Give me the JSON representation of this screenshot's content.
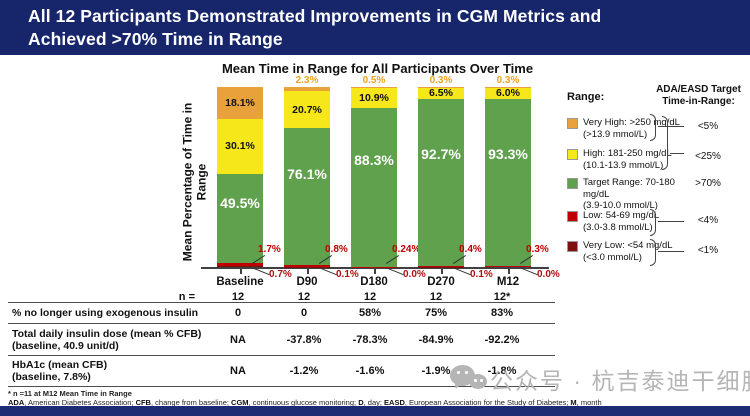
{
  "slide": {
    "title_line1": "All 12 Participants Demonstrated Improvements in CGM Metrics and",
    "title_line2": "Achieved >70% Time in Range"
  },
  "chart_data": {
    "type": "bar",
    "stacked": true,
    "title": "Mean Time in Range for All Participants Over Time",
    "ylabel": "Mean Percentage of Time in Range",
    "ylim": [
      0,
      100
    ],
    "grid": false,
    "legend_position": "right",
    "categories": [
      "Baseline",
      "D90",
      "D180",
      "D270",
      "M12"
    ],
    "series": [
      {
        "name": "Very High: >250 mg/dL (>13.9 mmol/L)",
        "color": "#E9A13C",
        "values": [
          18.1,
          2.3,
          0.5,
          0.3,
          0.3
        ],
        "labels": [
          "18.1%",
          "2.3%",
          "0.5%",
          "0.3%",
          "0.3%"
        ]
      },
      {
        "name": "High: 181-250 mg/dL (10.1-13.9 mmol/L)",
        "color": "#F6E71B",
        "values": [
          30.1,
          20.7,
          10.9,
          6.5,
          6.0
        ],
        "labels": [
          "30.1%",
          "20.7%",
          "10.9%",
          "6.5%",
          "6.0%"
        ]
      },
      {
        "name": "Target Range: 70-180 mg/dL (3.9-10.0 mmol/L)",
        "color": "#5FA14C",
        "values": [
          49.5,
          76.1,
          88.3,
          92.7,
          93.3
        ],
        "labels": [
          "49.5%",
          "76.1%",
          "88.3%",
          "92.7%",
          "93.3%"
        ]
      },
      {
        "name": "Low: 54-69 mg/dL (3.0-3.8 mmol/L)",
        "color": "#C00000",
        "values": [
          1.7,
          0.8,
          0.24,
          0.4,
          0.3
        ],
        "labels": [
          "1.7%",
          "0.8%",
          "0.24%",
          "0.4%",
          "0.3%"
        ]
      },
      {
        "name": "Very Low: <54 mg/dL (<3.0 mmol/L)",
        "color": "#7E1010",
        "values": [
          0.7,
          0.1,
          0.0,
          0.1,
          0.0
        ],
        "labels": [
          "0.7%",
          "0.1%",
          "0.0%",
          "0.1%",
          "0.0%"
        ]
      }
    ]
  },
  "legend": {
    "header": "Range:",
    "target_header_line1": "ADA/EASD Target",
    "target_header_line2": "Time-in-Range:",
    "items": [
      {
        "line1": "Very High: >250 mg/dL",
        "line2": "(>13.9 mmol/L)",
        "color": "#E9A13C",
        "target": "<5%"
      },
      {
        "line1": "High: 181-250 mg/dL",
        "line2": "(10.1-13.9 mmol/L)",
        "color": "#F6E71B",
        "target": "<25%"
      },
      {
        "line1": "Target Range: 70-180 mg/dL",
        "line2": "(3.9-10.0 mmol/L)",
        "color": "#5FA14C",
        "target": ">70%"
      },
      {
        "line1": "Low: 54-69 mg/dL",
        "line2": "(3.0-3.8 mmol/L)",
        "color": "#C00000",
        "target": "<4%"
      },
      {
        "line1": "Very Low: <54 mg/dL",
        "line2": "(<3.0 mmol/L)",
        "color": "#7E1010",
        "target": "<1%"
      }
    ]
  },
  "table": {
    "n_label": "n =",
    "n_values": [
      "12",
      "12",
      "12",
      "12",
      "12*"
    ],
    "rows": [
      {
        "label1": "% no longer using exogenous insulin",
        "label2": "",
        "values": [
          "0",
          "0",
          "58%",
          "75%",
          "83%"
        ]
      },
      {
        "label1": "Total daily insulin dose (mean % CFB)",
        "label2": "(baseline, 40.9 unit/d)",
        "values": [
          "NA",
          "-37.8%",
          "-78.3%",
          "-84.9%",
          "-92.2%"
        ]
      },
      {
        "label1": "HbA1c (mean CFB)",
        "label2": "(baseline, 7.8%)",
        "values": [
          "NA",
          "-1.2%",
          "-1.6%",
          "-1.9%",
          "-1.8%"
        ]
      }
    ]
  },
  "footnotes": {
    "asterisk": "* n =11 at M12 Mean Time in Range",
    "abbreviations": [
      [
        "ADA",
        ", American Diabetes Association;  "
      ],
      [
        "CFB",
        ", change from baseline; "
      ],
      [
        "CGM",
        ", continuous glucose monitoring; "
      ],
      [
        "D",
        ", day; "
      ],
      [
        "EASD",
        ", European Association for the Study of Diabetes; "
      ],
      [
        "M",
        ", month"
      ]
    ]
  },
  "watermark": {
    "label": "公众号 · 杭吉泰迪干细胞"
  }
}
